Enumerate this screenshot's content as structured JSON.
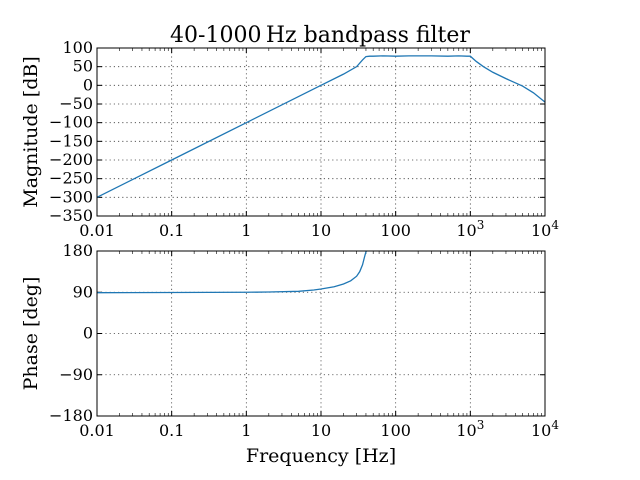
{
  "figure": {
    "title": "40-1000 Hz bandpass filter",
    "line_color": "#1f77b4"
  },
  "chart_data": [
    {
      "type": "line",
      "xscale": "log",
      "xlim": [
        0.01,
        10000
      ],
      "ylim": [
        -350,
        100
      ],
      "xlabel": "",
      "ylabel": "Magnitude [dB]",
      "grid": true,
      "xticks": [
        0.01,
        0.1,
        1,
        10,
        100,
        1000,
        10000
      ],
      "xtick_labels": [
        "0.01",
        "0.1",
        "1",
        "10",
        "100",
        "10^3",
        "10^4"
      ],
      "yticks": [
        100,
        50,
        0,
        -50,
        -100,
        -150,
        -200,
        -250,
        -300,
        -350
      ],
      "ytick_labels": [
        "100",
        "50",
        "0",
        "−50",
        "−100",
        "−150",
        "−200",
        "−250",
        "−300",
        "−350"
      ],
      "series": [
        {
          "x": [
            0.01,
            0.1,
            1,
            10,
            20,
            30,
            36,
            40,
            45,
            50,
            70,
            100,
            150,
            200,
            300,
            500,
            700,
            900,
            1000,
            1200,
            1500,
            2000,
            3000,
            5000,
            7000,
            10000
          ],
          "values": [
            -300,
            -200,
            -100,
            0,
            30,
            50,
            68,
            77,
            78,
            78,
            79,
            78,
            79,
            79,
            79,
            78,
            79,
            78,
            78,
            64,
            50,
            35,
            18,
            -2,
            -20,
            -45
          ]
        }
      ]
    },
    {
      "type": "line",
      "xscale": "log",
      "xlim": [
        0.01,
        10000
      ],
      "ylim": [
        -180,
        180
      ],
      "xlabel": "Frequency [Hz]",
      "ylabel": "Phase [deg]",
      "grid": true,
      "xticks": [
        0.01,
        0.1,
        1,
        10,
        100,
        1000,
        10000
      ],
      "xtick_labels": [
        "0.01",
        "0.1",
        "1",
        "10",
        "100",
        "10^3",
        "10^4"
      ],
      "yticks": [
        180,
        90,
        0,
        -90,
        -180
      ],
      "ytick_labels": [
        "180",
        "90",
        "0",
        "−90",
        "−180"
      ],
      "series": [
        {
          "x": [
            0.01,
            0.1,
            1,
            2,
            5,
            8,
            10,
            15,
            20,
            25,
            30,
            33,
            36,
            38,
            39,
            40,
            40.5
          ],
          "values": [
            89,
            89.5,
            90,
            90.5,
            92,
            95,
            97,
            102,
            108,
            115,
            125,
            135,
            150,
            165,
            172,
            178,
            180
          ]
        }
      ]
    }
  ]
}
